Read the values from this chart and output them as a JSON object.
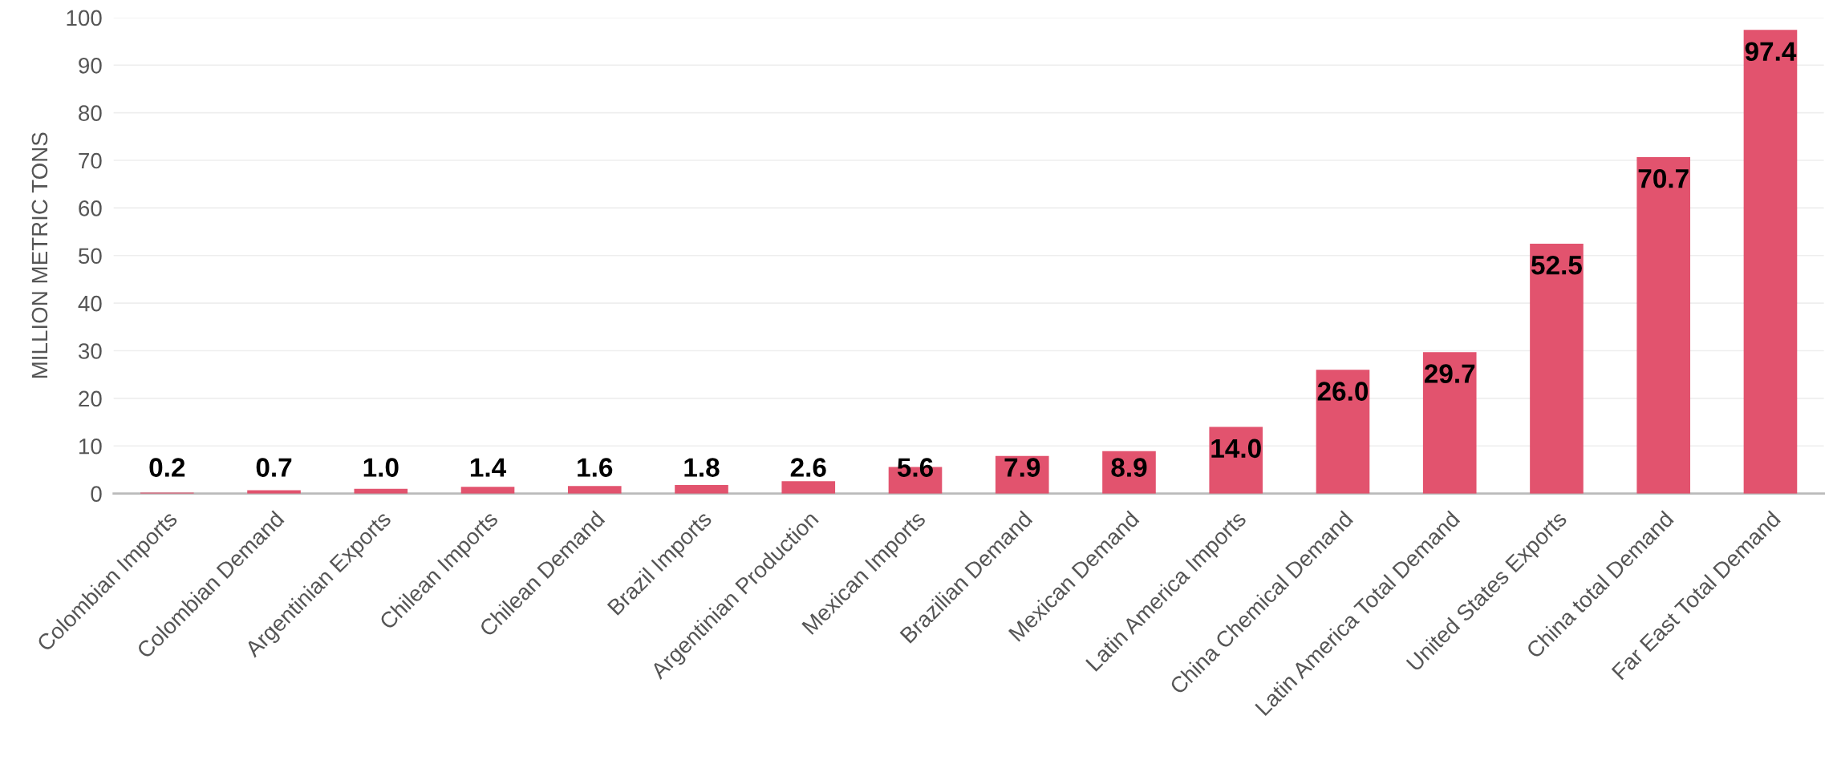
{
  "chart_data": {
    "type": "bar",
    "ylabel": "MILLION METRIC TONS",
    "categories": [
      "Colombian Imports",
      "Colombian Demand",
      "Argentinian Exports",
      "Chilean Imports",
      "Chilean Demand",
      "Brazil Imports",
      "Argentinian Production",
      "Mexican Imports",
      "Brazilian Demand",
      "Mexican Demand",
      "Latin America Imports",
      "China Chemical Demand",
      "Latin America Total Demand",
      "United States Exports",
      "China total Demand",
      "Far East Total Demand"
    ],
    "values": [
      0.2,
      0.7,
      1.0,
      1.4,
      1.6,
      1.8,
      2.6,
      5.6,
      7.9,
      8.9,
      14.0,
      26.0,
      29.7,
      52.5,
      70.7,
      97.4
    ],
    "color": "#e04a66",
    "ylim": [
      0,
      100
    ],
    "yticks": [
      0,
      10,
      20,
      30,
      40,
      50,
      60,
      70,
      80,
      90,
      100
    ],
    "value_labels": [
      "0.2",
      "0.7",
      "1.0",
      "1.4",
      "1.6",
      "1.8",
      "2.6",
      "5.6",
      "7.9",
      "8.9",
      "14.0",
      "26.0",
      "29.7",
      "52.5",
      "70.7",
      "97.4"
    ],
    "grid": "y"
  }
}
